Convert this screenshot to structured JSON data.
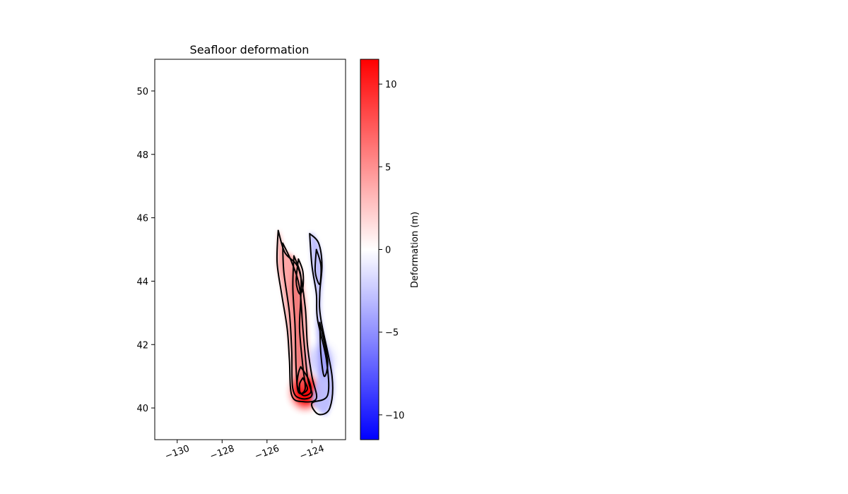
{
  "chart_data": {
    "type": "heatmap",
    "title": "Seafloor deformation",
    "xlabel": "",
    "ylabel": "",
    "xlim": [
      -131,
      -122.5
    ],
    "ylim": [
      39,
      51
    ],
    "x_ticks": [
      -130,
      -128,
      -126,
      -124
    ],
    "x_tick_labels": [
      "−130",
      "−128",
      "−126",
      "−124"
    ],
    "y_ticks": [
      40,
      42,
      44,
      46,
      48,
      50
    ],
    "y_tick_labels": [
      "40",
      "42",
      "44",
      "46",
      "48",
      "50"
    ],
    "colorbar": {
      "label": "Deformation (m)",
      "colormap": "bwr",
      "range": [
        -11.5,
        11.5
      ],
      "ticks": [
        -10,
        -5,
        0,
        5,
        10
      ],
      "tick_labels": [
        "−10",
        "−5",
        "0",
        "5",
        "10"
      ],
      "colors": {
        "low": "#0000ff",
        "mid": "#ffffff",
        "high": "#ff0000"
      }
    },
    "regions": [
      {
        "name": "uplift",
        "sign": "positive",
        "peak_m": 11,
        "peak_lon": -124.3,
        "peak_lat": 40.5,
        "outline": [
          [
            -125.5,
            45.6
          ],
          [
            -125.2,
            45.0
          ],
          [
            -124.6,
            44.6
          ],
          [
            -124.3,
            43.5
          ],
          [
            -124.2,
            42.5
          ],
          [
            -124.1,
            41.3
          ],
          [
            -123.8,
            40.3
          ],
          [
            -124.3,
            40.2
          ],
          [
            -124.8,
            40.4
          ],
          [
            -124.95,
            41.5
          ],
          [
            -125.1,
            42.5
          ],
          [
            -125.3,
            43.6
          ],
          [
            -125.55,
            44.6
          ]
        ]
      },
      {
        "name": "subsidence",
        "sign": "negative",
        "trough_m": -3.5,
        "trough_lon": -123.6,
        "trough_lat": 41.5,
        "outline": [
          [
            -124.1,
            45.5
          ],
          [
            -123.7,
            45.2
          ],
          [
            -123.5,
            44.4
          ],
          [
            -123.6,
            43.3
          ],
          [
            -123.5,
            42.5
          ],
          [
            -123.0,
            40.8
          ],
          [
            -123.3,
            39.8
          ],
          [
            -123.8,
            40.0
          ],
          [
            -124.0,
            40.3
          ],
          [
            -123.7,
            41.2
          ],
          [
            -123.8,
            42.5
          ],
          [
            -123.8,
            43.5
          ],
          [
            -124.0,
            44.4
          ]
        ]
      }
    ],
    "contours": [
      [
        [
          -125.5,
          45.6
        ],
        [
          -125.2,
          44.9
        ],
        [
          -124.6,
          44.4
        ],
        [
          -124.3,
          43.2
        ],
        [
          -124.2,
          42.0
        ],
        [
          -124.0,
          41.0
        ],
        [
          -123.8,
          40.3
        ],
        [
          -124.4,
          40.2
        ],
        [
          -124.9,
          40.4
        ],
        [
          -125.0,
          41.5
        ],
        [
          -125.1,
          42.5
        ],
        [
          -125.35,
          43.6
        ],
        [
          -125.55,
          44.6
        ],
        [
          -125.5,
          45.6
        ]
      ],
      [
        [
          -125.3,
          45.2
        ],
        [
          -124.9,
          44.6
        ],
        [
          -124.55,
          43.8
        ],
        [
          -124.4,
          42.5
        ],
        [
          -124.2,
          41.0
        ],
        [
          -124.0,
          40.4
        ],
        [
          -124.5,
          40.3
        ],
        [
          -124.85,
          40.6
        ],
        [
          -124.9,
          41.8
        ],
        [
          -125.0,
          43.0
        ],
        [
          -125.25,
          44.3
        ],
        [
          -125.3,
          45.2
        ]
      ],
      [
        [
          -124.8,
          44.8
        ],
        [
          -124.5,
          44.2
        ],
        [
          -124.5,
          43.4
        ],
        [
          -124.55,
          42.5
        ],
        [
          -124.4,
          41.3
        ],
        [
          -124.3,
          40.6
        ],
        [
          -124.6,
          40.5
        ],
        [
          -124.7,
          41.2
        ],
        [
          -124.75,
          42.6
        ],
        [
          -124.85,
          43.8
        ],
        [
          -124.8,
          44.8
        ]
      ],
      [
        [
          -124.6,
          44.7
        ],
        [
          -124.4,
          44.3
        ],
        [
          -124.4,
          43.8
        ],
        [
          -124.55,
          43.6
        ],
        [
          -124.7,
          44.0
        ],
        [
          -124.6,
          44.7
        ]
      ],
      [
        [
          -124.5,
          41.3
        ],
        [
          -124.15,
          40.9
        ],
        [
          -124.05,
          40.5
        ],
        [
          -124.4,
          40.4
        ],
        [
          -124.65,
          40.7
        ],
        [
          -124.6,
          41.1
        ],
        [
          -124.5,
          41.3
        ]
      ],
      [
        [
          -124.4,
          40.95
        ],
        [
          -124.2,
          40.6
        ],
        [
          -124.5,
          40.45
        ],
        [
          -124.55,
          40.75
        ],
        [
          -124.4,
          40.95
        ]
      ],
      [
        [
          -124.1,
          45.5
        ],
        [
          -123.7,
          45.2
        ],
        [
          -123.55,
          44.5
        ],
        [
          -123.65,
          43.6
        ],
        [
          -123.6,
          42.8
        ],
        [
          -123.1,
          41.0
        ],
        [
          -123.2,
          40.0
        ],
        [
          -123.7,
          39.8
        ],
        [
          -124.0,
          40.15
        ],
        [
          -123.3,
          40.4
        ],
        [
          -123.35,
          41.5
        ],
        [
          -123.75,
          42.8
        ],
        [
          -123.8,
          43.6
        ],
        [
          -124.0,
          44.5
        ],
        [
          -124.1,
          45.5
        ]
      ],
      [
        [
          -123.8,
          45.0
        ],
        [
          -123.6,
          44.5
        ],
        [
          -123.65,
          43.9
        ],
        [
          -123.85,
          44.3
        ],
        [
          -123.8,
          45.0
        ]
      ],
      [
        [
          -123.65,
          42.7
        ],
        [
          -123.3,
          41.5
        ],
        [
          -123.45,
          41.0
        ],
        [
          -123.6,
          41.7
        ],
        [
          -123.65,
          42.7
        ]
      ]
    ]
  }
}
